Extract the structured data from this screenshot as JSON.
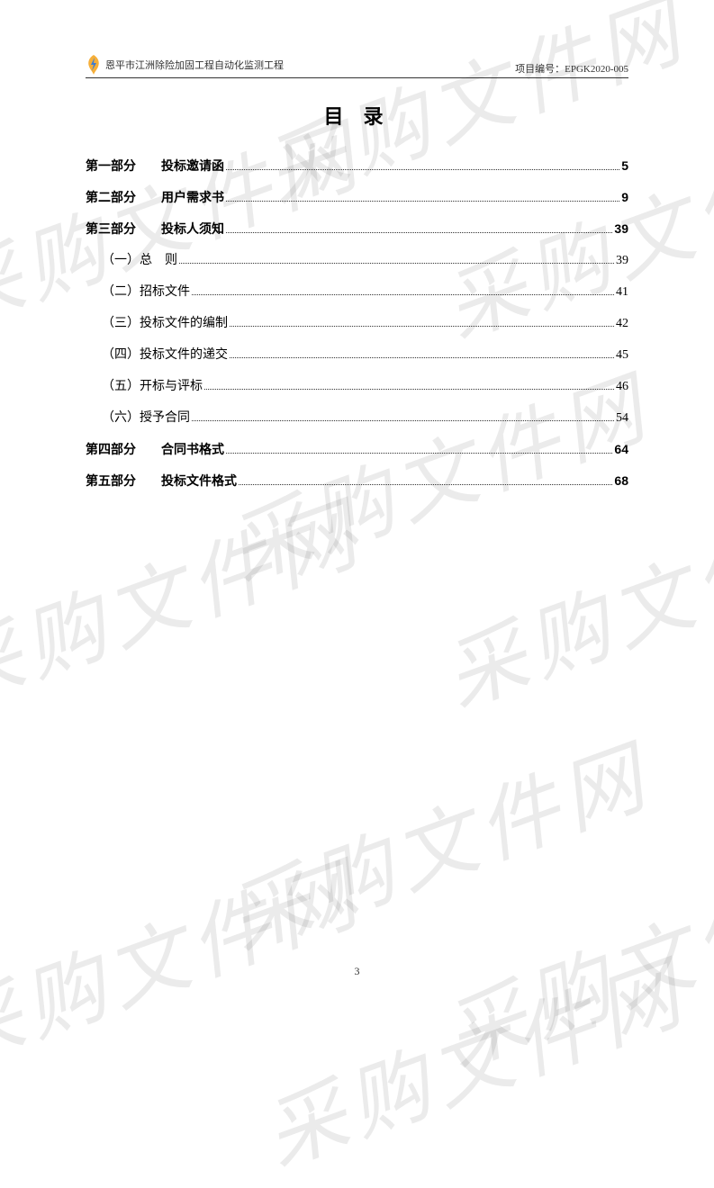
{
  "header": {
    "project_title": "恩平市江洲除险加固工程自动化监测工程",
    "project_code_label": "项目编号：",
    "project_code": "EPGK2020-005"
  },
  "watermark_text": "采购文件网",
  "toc": {
    "title": "目 录",
    "entries": [
      {
        "level": 1,
        "part": "第一部分",
        "label": "投标邀请函",
        "page": "5"
      },
      {
        "level": 1,
        "part": "第二部分",
        "label": "用户需求书",
        "page": "9"
      },
      {
        "level": 1,
        "part": "第三部分",
        "label": "投标人须知",
        "page": "39"
      },
      {
        "level": 2,
        "part": "（一）",
        "label": "总　则",
        "page": "39"
      },
      {
        "level": 2,
        "part": "（二）",
        "label": "招标文件",
        "page": "41"
      },
      {
        "level": 2,
        "part": "（三）",
        "label": "投标文件的编制",
        "page": "42"
      },
      {
        "level": 2,
        "part": "（四）",
        "label": "投标文件的递交",
        "page": "45"
      },
      {
        "level": 2,
        "part": "（五）",
        "label": "开标与评标",
        "page": "46"
      },
      {
        "level": 2,
        "part": "（六）",
        "label": "授予合同",
        "page": "54"
      },
      {
        "level": 1,
        "part": "第四部分",
        "label": "合同书格式",
        "page": "64"
      },
      {
        "level": 1,
        "part": "第五部分",
        "label": "投标文件格式",
        "page": "68"
      }
    ]
  },
  "page_number": "3",
  "colors": {
    "text": "#333333",
    "background": "#ffffff",
    "watermark": "rgba(0,0,0,0.08)",
    "logo_blue": "#3a7bd5",
    "logo_yellow": "#f5a623"
  }
}
